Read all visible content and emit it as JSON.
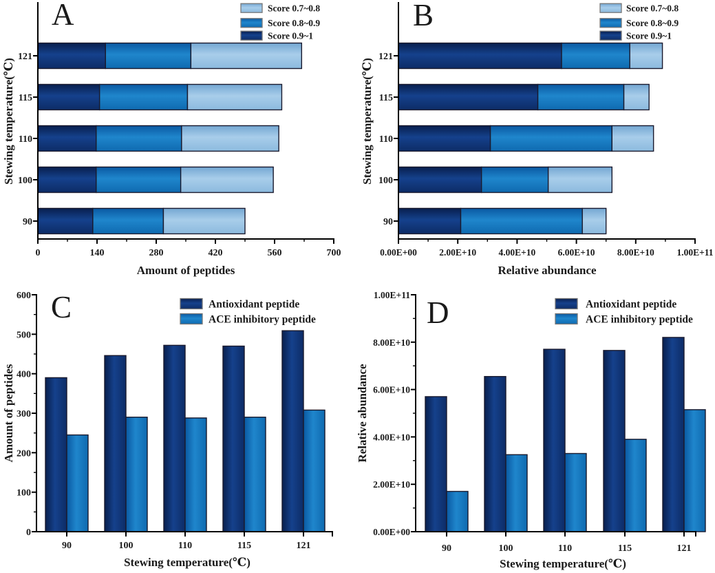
{
  "figure": {
    "description_colors": {
      "dark_blue": {
        "edge1": "#081f4e",
        "mid": "#15418c",
        "edge2": "#0d2c66"
      },
      "medium_blue": {
        "edge1": "#0a59a2",
        "mid": "#1f86cc",
        "edge2": "#0f6ab0"
      },
      "light_blue": {
        "edge1": "#74a7d2",
        "mid": "#a8cdea",
        "edge2": "#8cbade"
      },
      "bar_outline": "#1a1a2e",
      "legend_outline": "#777777",
      "axis_color": "#000000",
      "text_color": "#1a1a1a"
    }
  },
  "chart_data": [
    {
      "id": "A",
      "panel_label": "A",
      "type": "bar",
      "orientation": "horizontal",
      "stacked": true,
      "xlabel": "Amount of peptides",
      "ylabel": "Stewing temperature(℃)",
      "categories": [
        "90",
        "100",
        "110",
        "115",
        "121"
      ],
      "xlim": [
        0,
        700
      ],
      "xticks": {
        "values": [
          0,
          140,
          280,
          420,
          560,
          700
        ],
        "labels": [
          "0",
          "140",
          "280",
          "420",
          "560",
          "700"
        ]
      },
      "minor_tick_step": 70,
      "legend_position": "top-right",
      "legend": [
        {
          "label": "Score 0.7~0.8",
          "color_key": "light_blue"
        },
        {
          "label": "Score 0.8~0.9",
          "color_key": "medium_blue"
        },
        {
          "label": "Score 0.9~1",
          "color_key": "dark_blue"
        }
      ],
      "series": [
        {
          "name": "Score 0.9~1",
          "color_key": "dark_blue",
          "values": [
            130,
            138,
            138,
            146,
            160
          ]
        },
        {
          "name": "Score 0.8~0.9",
          "color_key": "medium_blue",
          "values": [
            167,
            200,
            202,
            208,
            202
          ]
        },
        {
          "name": "Score 0.7~0.8",
          "color_key": "light_blue",
          "values": [
            193,
            219,
            230,
            223,
            262
          ]
        }
      ],
      "totals": [
        490,
        557,
        570,
        577,
        624
      ]
    },
    {
      "id": "B",
      "panel_label": "B",
      "type": "bar",
      "orientation": "horizontal",
      "stacked": true,
      "xlabel": "Relative abundance",
      "ylabel": "Stewing temperature(℃)",
      "categories": [
        "90",
        "100",
        "110",
        "115",
        "121"
      ],
      "xlim": [
        0,
        100000000000.0
      ],
      "xticks": {
        "values": [
          0,
          20000000000.0,
          40000000000.0,
          60000000000.0,
          80000000000.0,
          100000000000.0
        ],
        "labels": [
          "0.00E+00",
          "2.00E+10",
          "4.00E+10",
          "6.00E+10",
          "8.00E+10",
          "1.00E+11"
        ]
      },
      "minor_tick_step": 10000000000.0,
      "legend_position": "top-right",
      "legend": [
        {
          "label": "Score 0.7~0.8",
          "color_key": "light_blue"
        },
        {
          "label": "Score 0.8~0.9",
          "color_key": "medium_blue"
        },
        {
          "label": "Score 0.9~1",
          "color_key": "dark_blue"
        }
      ],
      "series": [
        {
          "name": "Score 0.9~1",
          "color_key": "dark_blue",
          "values": [
            21000000000.0,
            28000000000.0,
            31000000000.0,
            47000000000.0,
            55000000000.0
          ]
        },
        {
          "name": "Score 0.8~0.9",
          "color_key": "medium_blue",
          "values": [
            41000000000.0,
            22500000000.0,
            41000000000.0,
            29000000000.0,
            23000000000.0
          ]
        },
        {
          "name": "Score 0.7~0.8",
          "color_key": "light_blue",
          "values": [
            8000000000.0,
            21500000000.0,
            14000000000.0,
            8500000000.0,
            11000000000.0
          ]
        }
      ],
      "totals": [
        70000000000.0,
        72000000000.0,
        86000000000.0,
        84500000000.0,
        89000000000.0
      ]
    },
    {
      "id": "C",
      "panel_label": "C",
      "type": "bar",
      "orientation": "vertical",
      "stacked": false,
      "xlabel": "Stewing temperature(℃)",
      "ylabel": "Amount of peptides",
      "categories": [
        "90",
        "100",
        "110",
        "115",
        "121"
      ],
      "ylim": [
        0,
        600
      ],
      "yticks": {
        "values": [
          0,
          100,
          200,
          300,
          400,
          500,
          600
        ],
        "labels": [
          "0",
          "100",
          "200",
          "300",
          "400",
          "500",
          "600"
        ]
      },
      "minor_tick_step": 50,
      "legend_position": "top-right",
      "legend": [
        {
          "label": "Antioxidant peptide",
          "color_key": "dark_blue"
        },
        {
          "label": "ACE inhibitory peptide",
          "color_key": "medium_blue"
        }
      ],
      "series": [
        {
          "name": "Antioxidant peptide",
          "color_key": "dark_blue",
          "values": [
            390,
            446,
            472,
            470,
            509
          ]
        },
        {
          "name": "ACE inhibitory peptide",
          "color_key": "medium_blue",
          "values": [
            245,
            290,
            288,
            290,
            308
          ]
        }
      ]
    },
    {
      "id": "D",
      "panel_label": "D",
      "type": "bar",
      "orientation": "vertical",
      "stacked": false,
      "xlabel": "Stewing temperature(℃)",
      "ylabel": "Relative abundance",
      "categories": [
        "90",
        "100",
        "110",
        "115",
        "121"
      ],
      "ylim": [
        0,
        100000000000.0
      ],
      "yticks": {
        "values": [
          0,
          20000000000.0,
          40000000000.0,
          60000000000.0,
          80000000000.0,
          100000000000.0
        ],
        "labels": [
          "0.00E+00",
          "2.00E+10",
          "4.00E+10",
          "6.00E+10",
          "8.00E+10",
          "1.00E+11"
        ]
      },
      "minor_tick_step": 10000000000.0,
      "legend_position": "top-right",
      "legend": [
        {
          "label": "Antioxidant peptide",
          "color_key": "dark_blue"
        },
        {
          "label": "ACE inhibitory peptide",
          "color_key": "medium_blue"
        }
      ],
      "series": [
        {
          "name": "Antioxidant peptide",
          "color_key": "dark_blue",
          "values": [
            57000000000.0,
            65500000000.0,
            77000000000.0,
            76500000000.0,
            82000000000.0
          ]
        },
        {
          "name": "ACE inhibitory peptide",
          "color_key": "medium_blue",
          "values": [
            17000000000.0,
            32500000000.0,
            33000000000.0,
            39000000000.0,
            51500000000.0
          ]
        }
      ]
    }
  ]
}
